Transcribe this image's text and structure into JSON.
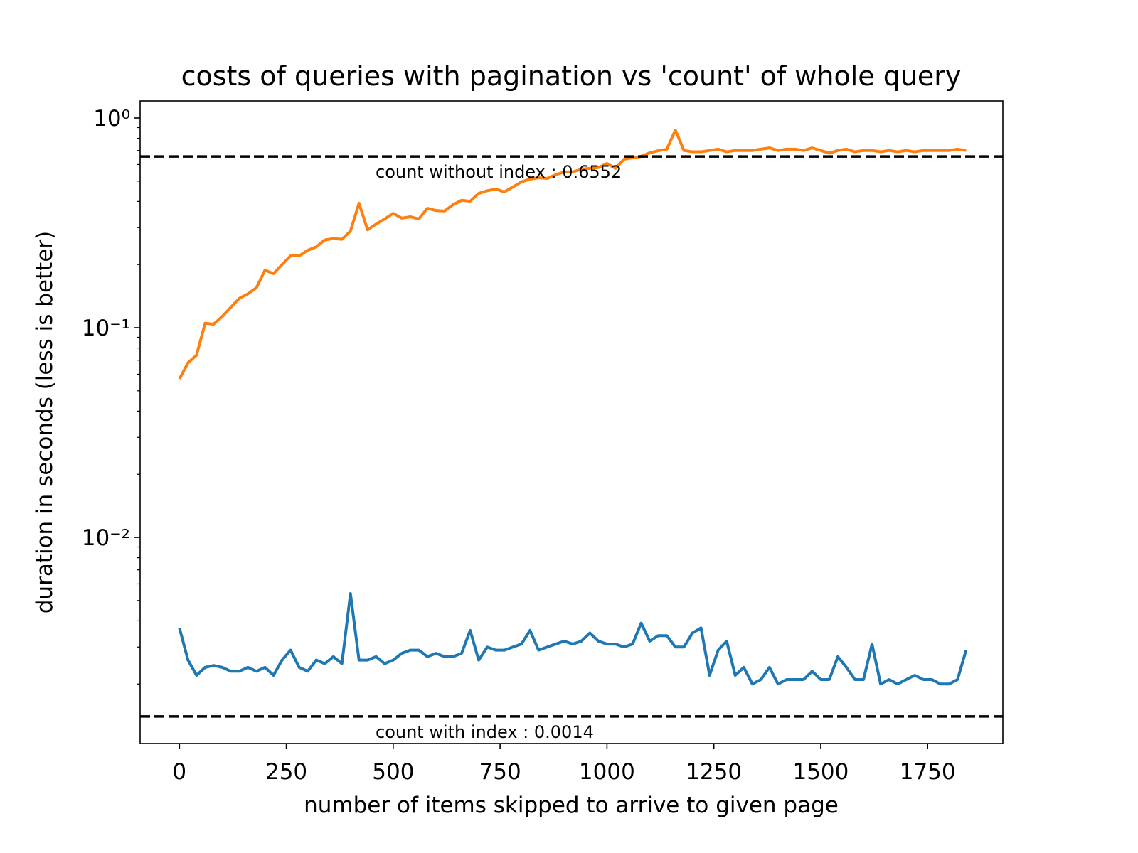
{
  "chart_data": {
    "type": "line",
    "title": "costs of queries with pagination vs 'count' of whole query",
    "xlabel": "number of items skipped to arrive to given page",
    "ylabel": "duration in seconds (less is better)",
    "log_y": true,
    "xlim": [
      -92,
      1926
    ],
    "ylim": [
      0.00104,
      1.206
    ],
    "xticks": [
      0,
      250,
      500,
      750,
      1000,
      1250,
      1500,
      1750
    ],
    "yticks": [
      {
        "value": 0.01,
        "label": "10⁻²"
      },
      {
        "value": 0.1,
        "label": "10⁻¹"
      },
      {
        "value": 1,
        "label": "10⁰"
      }
    ],
    "yminorticks": [
      0.002,
      0.003,
      0.004,
      0.005,
      0.006,
      0.007,
      0.008,
      0.009,
      0.02,
      0.03,
      0.04,
      0.05,
      0.06,
      0.07,
      0.08,
      0.09,
      0.2,
      0.3,
      0.4,
      0.5,
      0.6,
      0.7,
      0.8,
      0.9
    ],
    "x": [
      0,
      20,
      40,
      60,
      80,
      100,
      120,
      140,
      160,
      180,
      200,
      220,
      240,
      260,
      280,
      300,
      320,
      340,
      360,
      380,
      400,
      420,
      440,
      460,
      480,
      500,
      520,
      540,
      560,
      580,
      600,
      620,
      640,
      660,
      680,
      700,
      720,
      740,
      760,
      780,
      800,
      820,
      840,
      860,
      880,
      900,
      920,
      940,
      960,
      980,
      1000,
      1020,
      1040,
      1060,
      1080,
      1100,
      1120,
      1140,
      1160,
      1180,
      1200,
      1220,
      1240,
      1260,
      1280,
      1300,
      1320,
      1340,
      1360,
      1380,
      1400,
      1420,
      1440,
      1460,
      1480,
      1500,
      1520,
      1540,
      1560,
      1580,
      1600,
      1620,
      1640,
      1660,
      1680,
      1700,
      1720,
      1740,
      1760,
      1780,
      1800,
      1820,
      1840
    ],
    "series": [
      {
        "color": "#1f77b4",
        "values": [
          0.0037,
          0.0026,
          0.0022,
          0.0024,
          0.00245,
          0.0024,
          0.0023,
          0.0023,
          0.0024,
          0.0023,
          0.0024,
          0.0022,
          0.0026,
          0.0029,
          0.0024,
          0.0023,
          0.0026,
          0.0025,
          0.0027,
          0.0025,
          0.0054,
          0.0026,
          0.0026,
          0.0027,
          0.0025,
          0.0026,
          0.0028,
          0.0029,
          0.0029,
          0.0027,
          0.0028,
          0.0027,
          0.0027,
          0.0028,
          0.0036,
          0.0026,
          0.003,
          0.0029,
          0.0029,
          0.003,
          0.0031,
          0.0036,
          0.0029,
          0.003,
          0.0031,
          0.0032,
          0.0031,
          0.0032,
          0.0035,
          0.0032,
          0.0031,
          0.0031,
          0.003,
          0.0031,
          0.0039,
          0.0032,
          0.0034,
          0.0034,
          0.003,
          0.003,
          0.0035,
          0.0037,
          0.0022,
          0.0029,
          0.0032,
          0.0022,
          0.0024,
          0.002,
          0.0021,
          0.0024,
          0.002,
          0.0021,
          0.0021,
          0.0021,
          0.0023,
          0.0021,
          0.0021,
          0.0027,
          0.0024,
          0.0021,
          0.0021,
          0.0031,
          0.002,
          0.0021,
          0.002,
          0.0021,
          0.0022,
          0.0021,
          0.0021,
          0.002,
          0.002,
          0.0021,
          0.0029
        ]
      },
      {
        "color": "#ff7f0e",
        "values": [
          0.057,
          0.068,
          0.074,
          0.105,
          0.104,
          0.113,
          0.125,
          0.138,
          0.145,
          0.155,
          0.188,
          0.181,
          0.2,
          0.22,
          0.22,
          0.234,
          0.243,
          0.262,
          0.266,
          0.264,
          0.289,
          0.392,
          0.293,
          0.312,
          0.33,
          0.351,
          0.333,
          0.338,
          0.33,
          0.371,
          0.362,
          0.36,
          0.386,
          0.405,
          0.401,
          0.437,
          0.45,
          0.458,
          0.444,
          0.469,
          0.496,
          0.511,
          0.519,
          0.515,
          0.536,
          0.553,
          0.553,
          0.57,
          0.575,
          0.58,
          0.607,
          0.575,
          0.636,
          0.646,
          0.656,
          0.682,
          0.698,
          0.71,
          0.876,
          0.7,
          0.69,
          0.69,
          0.7,
          0.71,
          0.69,
          0.7,
          0.7,
          0.7,
          0.71,
          0.72,
          0.7,
          0.71,
          0.71,
          0.7,
          0.72,
          0.7,
          0.68,
          0.7,
          0.71,
          0.69,
          0.7,
          0.7,
          0.69,
          0.7,
          0.69,
          0.7,
          0.69,
          0.7,
          0.7,
          0.7,
          0.7,
          0.71,
          0.7
        ]
      }
    ],
    "hlines": [
      {
        "value": 0.6552,
        "label": "count without index : 0.6552",
        "color": "#000000"
      },
      {
        "value": 0.0014,
        "label": "count with index : 0.0014",
        "color": "#000000"
      }
    ]
  }
}
